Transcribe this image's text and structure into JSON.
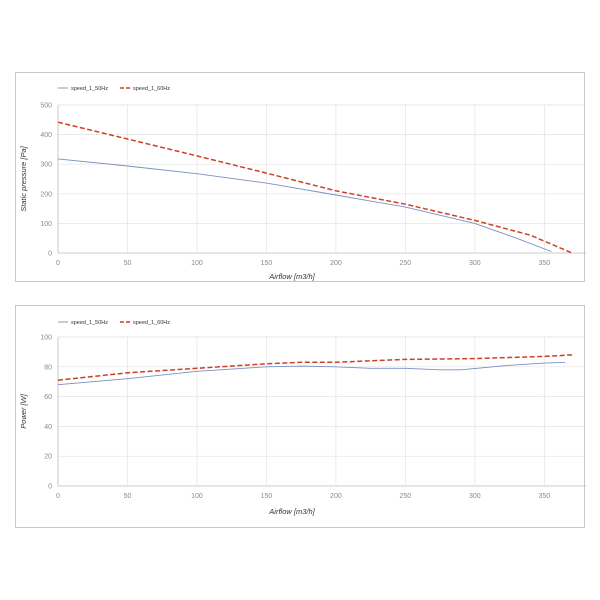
{
  "chart_data": [
    {
      "type": "line",
      "xlabel": "Airflow [m3/h]",
      "ylabel": "Static pressure [Pa]",
      "xlim": [
        0,
        380
      ],
      "ylim": [
        0,
        500
      ],
      "xticks": [
        0,
        50,
        100,
        150,
        200,
        250,
        300,
        350
      ],
      "yticks": [
        0,
        100,
        200,
        300,
        400,
        500
      ],
      "grid": true,
      "legend_position": "top-left",
      "series": [
        {
          "name": "speed_1_50Hz",
          "color": "#7b8fc2",
          "style": "solid",
          "x": [
            0,
            50,
            100,
            150,
            200,
            250,
            300,
            330,
            355
          ],
          "y": [
            318,
            294,
            268,
            236,
            196,
            155,
            100,
            50,
            5
          ]
        },
        {
          "name": "speed_1_60Hz",
          "color": "#cc4125",
          "style": "dashed",
          "x": [
            0,
            50,
            100,
            150,
            200,
            250,
            300,
            340,
            370
          ],
          "y": [
            442,
            385,
            328,
            270,
            210,
            165,
            110,
            60,
            0
          ]
        }
      ]
    },
    {
      "type": "line",
      "xlabel": "Airflow [m3/h]",
      "ylabel": "Power [W]",
      "xlim": [
        0,
        380
      ],
      "ylim": [
        0,
        100
      ],
      "xticks": [
        0,
        50,
        100,
        150,
        200,
        250,
        300,
        350
      ],
      "yticks": [
        0,
        20,
        40,
        60,
        80,
        100
      ],
      "grid": true,
      "legend_position": "top-left",
      "series": [
        {
          "name": "speed_1_50Hz",
          "color": "#7b8fc2",
          "style": "solid",
          "x": [
            0,
            50,
            100,
            150,
            175,
            200,
            225,
            250,
            275,
            290,
            325,
            350,
            365
          ],
          "y": [
            68,
            72,
            77,
            80,
            80.5,
            80,
            79,
            79,
            78,
            78,
            81,
            82.5,
            83
          ]
        },
        {
          "name": "speed_1_60Hz",
          "color": "#cc4125",
          "style": "dashed",
          "x": [
            0,
            50,
            100,
            150,
            175,
            200,
            225,
            250,
            300,
            350,
            370
          ],
          "y": [
            71,
            76,
            79,
            82,
            83,
            83,
            84,
            85,
            85.5,
            87,
            88
          ]
        }
      ]
    }
  ]
}
